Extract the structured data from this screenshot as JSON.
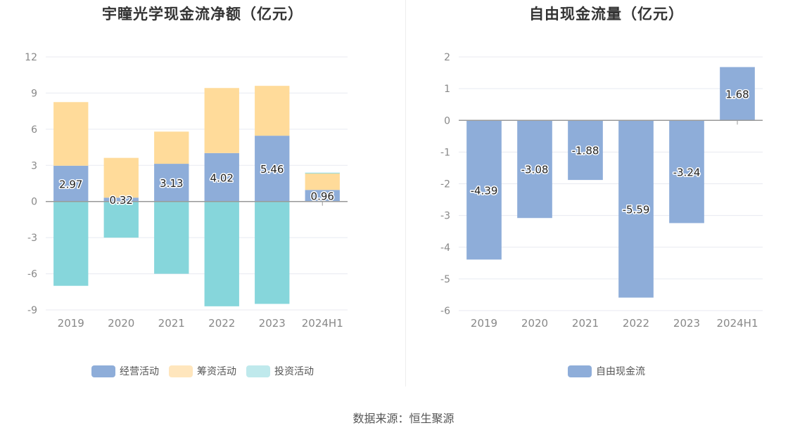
{
  "source_text": "数据来源：恒生聚源",
  "chart_data": [
    {
      "type": "bar",
      "stacked": true,
      "title": "宇瞳光学现金流净额（亿元）",
      "categories": [
        "2019",
        "2020",
        "2021",
        "2022",
        "2023",
        "2024H1"
      ],
      "ylim": [
        -9,
        12
      ],
      "yticks": [
        12,
        9,
        6,
        3,
        0,
        -3,
        -6,
        -9
      ],
      "grid": true,
      "legend_position": "bottom",
      "series": [
        {
          "name": "经营活动",
          "color": "#8eadd9",
          "values": [
            2.97,
            0.32,
            3.13,
            4.02,
            5.46,
            0.96
          ],
          "labels": [
            "2.97",
            "0.32",
            "3.13",
            "4.02",
            "5.46",
            "0.96"
          ]
        },
        {
          "name": "筹资活动",
          "color": "#ffdb9a",
          "values": [
            5.28,
            3.3,
            2.67,
            5.4,
            4.14,
            1.37
          ]
        },
        {
          "name": "投资活动",
          "color": "#86d6db",
          "values": [
            -7.0,
            -3.0,
            -6.0,
            -8.7,
            -8.5,
            0.06
          ]
        }
      ]
    },
    {
      "type": "bar",
      "title": "自由现金流量（亿元）",
      "categories": [
        "2019",
        "2020",
        "2021",
        "2022",
        "2023",
        "2024H1"
      ],
      "ylim": [
        -6,
        2
      ],
      "yticks": [
        2,
        1,
        0,
        -1,
        -2,
        -3,
        -4,
        -5,
        -6
      ],
      "grid": true,
      "legend_position": "bottom",
      "series": [
        {
          "name": "自由现金流",
          "color": "#8eadd9",
          "values": [
            -4.39,
            -3.08,
            -1.88,
            -5.59,
            -3.24,
            1.68
          ],
          "labels": [
            "-4.39",
            "-3.08",
            "-1.88",
            "-5.59",
            "-3.24",
            "1.68"
          ]
        }
      ]
    }
  ]
}
